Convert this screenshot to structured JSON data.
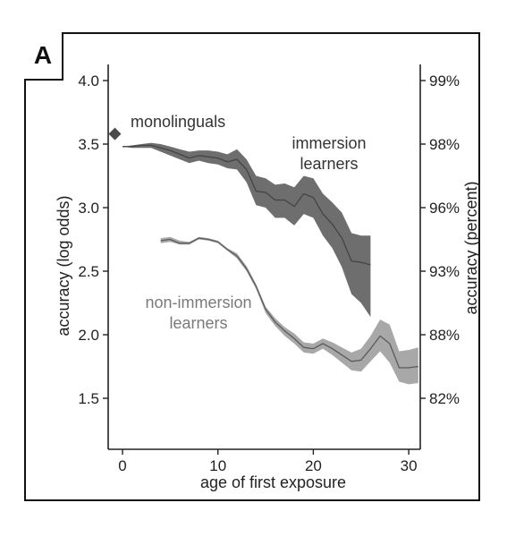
{
  "chart_data": {
    "type": "line",
    "panel_label": "A",
    "xlabel": "age of first exposure",
    "ylabel": "accuracy (log odds)",
    "ylabel_right": "accuracy (percent)",
    "xlim": [
      -1.5,
      31
    ],
    "ylim": [
      1.3,
      4.15
    ],
    "x_ticks": [
      0,
      10,
      20,
      30
    ],
    "y_ticks": [
      1.5,
      2.0,
      2.5,
      3.0,
      3.5,
      4.0
    ],
    "y_tick_labels": [
      "1.5",
      "2.0",
      "2.5",
      "3.0",
      "3.5",
      "4.0"
    ],
    "right_ticks": [
      {
        "label": "99%",
        "logodds": 4.0
      },
      {
        "label": "98%",
        "logodds": 3.5
      },
      {
        "label": "96%",
        "logodds": 3.0
      },
      {
        "label": "93%",
        "logodds": 2.5
      },
      {
        "label": "88%",
        "logodds": 2.0
      },
      {
        "label": "82%",
        "logodds": 1.5
      }
    ],
    "monolinguals": {
      "name": "monolinguals",
      "x": -0.8,
      "y": 3.58,
      "color": "#4a4a4a"
    },
    "series": [
      {
        "name": "immersion learners",
        "line_color": "#444444",
        "band_color": "#6e6e6e",
        "x": [
          0,
          1,
          2,
          3,
          4,
          5,
          6,
          7,
          8,
          9,
          10,
          11,
          12,
          13,
          14,
          15,
          16,
          17,
          18,
          19,
          20,
          21,
          22,
          23,
          24,
          25,
          26
        ],
        "y": [
          3.48,
          3.48,
          3.49,
          3.49,
          3.47,
          3.45,
          3.42,
          3.39,
          3.41,
          3.4,
          3.39,
          3.36,
          3.38,
          3.3,
          3.13,
          3.12,
          3.06,
          3.06,
          3.01,
          3.11,
          3.08,
          2.95,
          2.87,
          2.76,
          2.58,
          2.57,
          2.55
        ],
        "lower": [
          3.48,
          3.47,
          3.47,
          3.47,
          3.44,
          3.41,
          3.38,
          3.35,
          3.37,
          3.35,
          3.34,
          3.31,
          3.3,
          3.2,
          3.02,
          3.0,
          2.92,
          2.92,
          2.86,
          2.95,
          2.92,
          2.78,
          2.68,
          2.53,
          2.32,
          2.25,
          2.14
        ],
        "upper": [
          3.48,
          3.49,
          3.5,
          3.51,
          3.5,
          3.48,
          3.46,
          3.44,
          3.45,
          3.45,
          3.44,
          3.42,
          3.46,
          3.38,
          3.25,
          3.23,
          3.18,
          3.19,
          3.16,
          3.25,
          3.23,
          3.11,
          3.04,
          2.96,
          2.8,
          2.78,
          2.78
        ]
      },
      {
        "name": "non-immersion learners",
        "line_color": "#5a5a5a",
        "band_color": "#a8a8a8",
        "x": [
          4,
          5,
          6,
          7,
          8,
          9,
          10,
          11,
          12,
          13,
          14,
          15,
          16,
          17,
          18,
          19,
          20,
          21,
          22,
          23,
          24,
          25,
          26,
          27,
          28,
          29,
          30,
          31
        ],
        "y": [
          2.74,
          2.75,
          2.72,
          2.72,
          2.76,
          2.75,
          2.73,
          2.67,
          2.62,
          2.52,
          2.38,
          2.2,
          2.1,
          2.03,
          1.97,
          1.9,
          1.89,
          1.93,
          1.89,
          1.84,
          1.79,
          1.8,
          1.89,
          1.99,
          1.93,
          1.74,
          1.74,
          1.75
        ],
        "lower": [
          2.72,
          2.73,
          2.71,
          2.71,
          2.75,
          2.74,
          2.72,
          2.66,
          2.6,
          2.5,
          2.36,
          2.17,
          2.07,
          1.99,
          1.93,
          1.86,
          1.85,
          1.89,
          1.84,
          1.78,
          1.72,
          1.71,
          1.79,
          1.87,
          1.78,
          1.63,
          1.61,
          1.62
        ],
        "upper": [
          2.76,
          2.77,
          2.74,
          2.73,
          2.77,
          2.76,
          2.74,
          2.68,
          2.64,
          2.54,
          2.4,
          2.22,
          2.13,
          2.06,
          2.01,
          1.94,
          1.93,
          1.97,
          1.94,
          1.9,
          1.86,
          1.89,
          1.99,
          2.12,
          2.08,
          1.87,
          1.88,
          1.9
        ]
      }
    ],
    "annotations": [
      {
        "id": "immersion",
        "lines": [
          "immersion",
          "learners"
        ],
        "color": "#333333"
      },
      {
        "id": "non-immersion",
        "lines": [
          "non-immersion",
          "learners"
        ],
        "color": "#7a7a7a"
      }
    ]
  }
}
